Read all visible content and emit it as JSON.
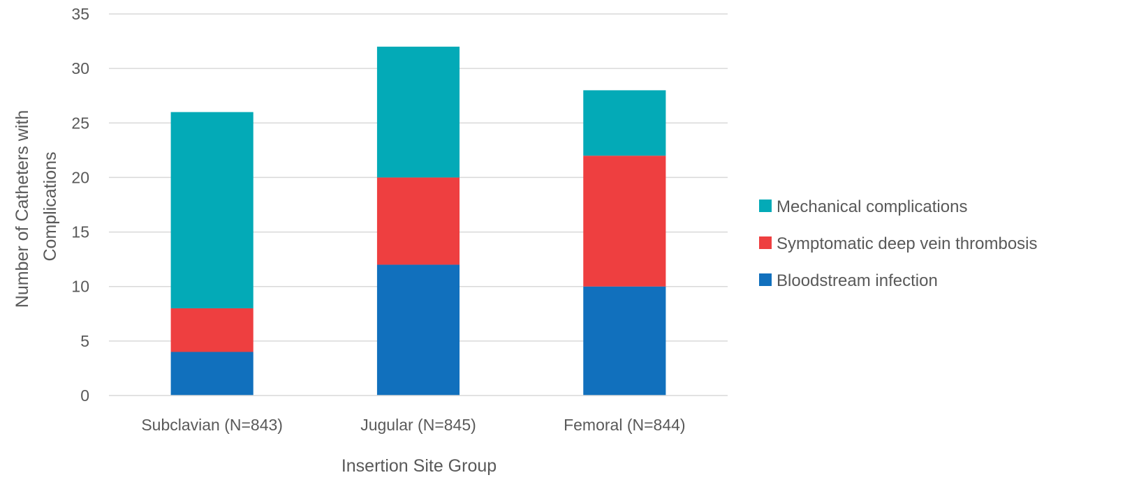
{
  "chart_data": {
    "type": "bar",
    "stacked": true,
    "title": "",
    "xlabel": "Insertion Site Group",
    "ylabel_lines": [
      "Number of Catheters with",
      "Complications"
    ],
    "categories": [
      "Subclavian (N=843)",
      "Jugular (N=845)",
      "Femoral (N=844)"
    ],
    "ylim": [
      0,
      35
    ],
    "yticks": [
      0,
      5,
      10,
      15,
      20,
      25,
      30,
      35
    ],
    "grid": true,
    "legend_position": "right",
    "series": [
      {
        "name": "Bloodstream infection",
        "values": [
          4,
          12,
          10
        ],
        "color": "#1170bd"
      },
      {
        "name": "Symptomatic deep vein thrombosis",
        "values": [
          4,
          8,
          12
        ],
        "color": "#ee3f40"
      },
      {
        "name": "Mechanical complications",
        "values": [
          18,
          12,
          6
        ],
        "color": "#03aab7"
      }
    ]
  }
}
